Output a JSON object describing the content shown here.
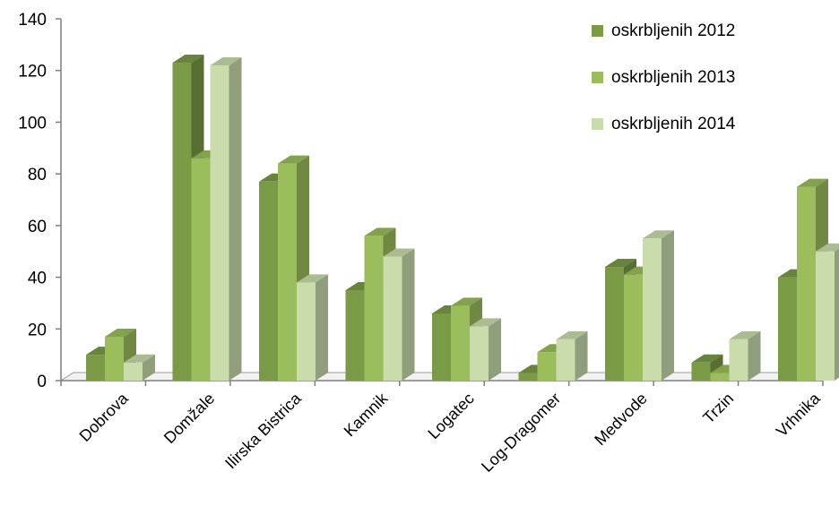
{
  "chart_data": {
    "type": "bar",
    "categories": [
      "Dobrova",
      "Domžale",
      "Ilirska Bistrica",
      "Kamnik",
      "Logatec",
      "Log-Dragomer",
      "Medvode",
      "Trzin",
      "Vrhnika"
    ],
    "series": [
      {
        "name": "oskrbljenih 2012",
        "values": [
          10,
          123,
          77,
          35,
          26,
          3,
          44,
          7,
          40
        ],
        "color": "#7a9a45"
      },
      {
        "name": "oskrbljenih 2013",
        "values": [
          17,
          86,
          84,
          56,
          29,
          11,
          41,
          3,
          75
        ],
        "color": "#9bbd5b"
      },
      {
        "name": "oskrbljenih 2014",
        "values": [
          7,
          122,
          38,
          48,
          21,
          16,
          55,
          16,
          50
        ],
        "color": "#c9dcac"
      }
    ],
    "y_ticks": [
      0,
      20,
      40,
      60,
      80,
      100,
      120,
      140
    ],
    "ylim": [
      0,
      140
    ],
    "grid": false,
    "legend_position": "top-right",
    "style": "3d-clustered-bar"
  }
}
